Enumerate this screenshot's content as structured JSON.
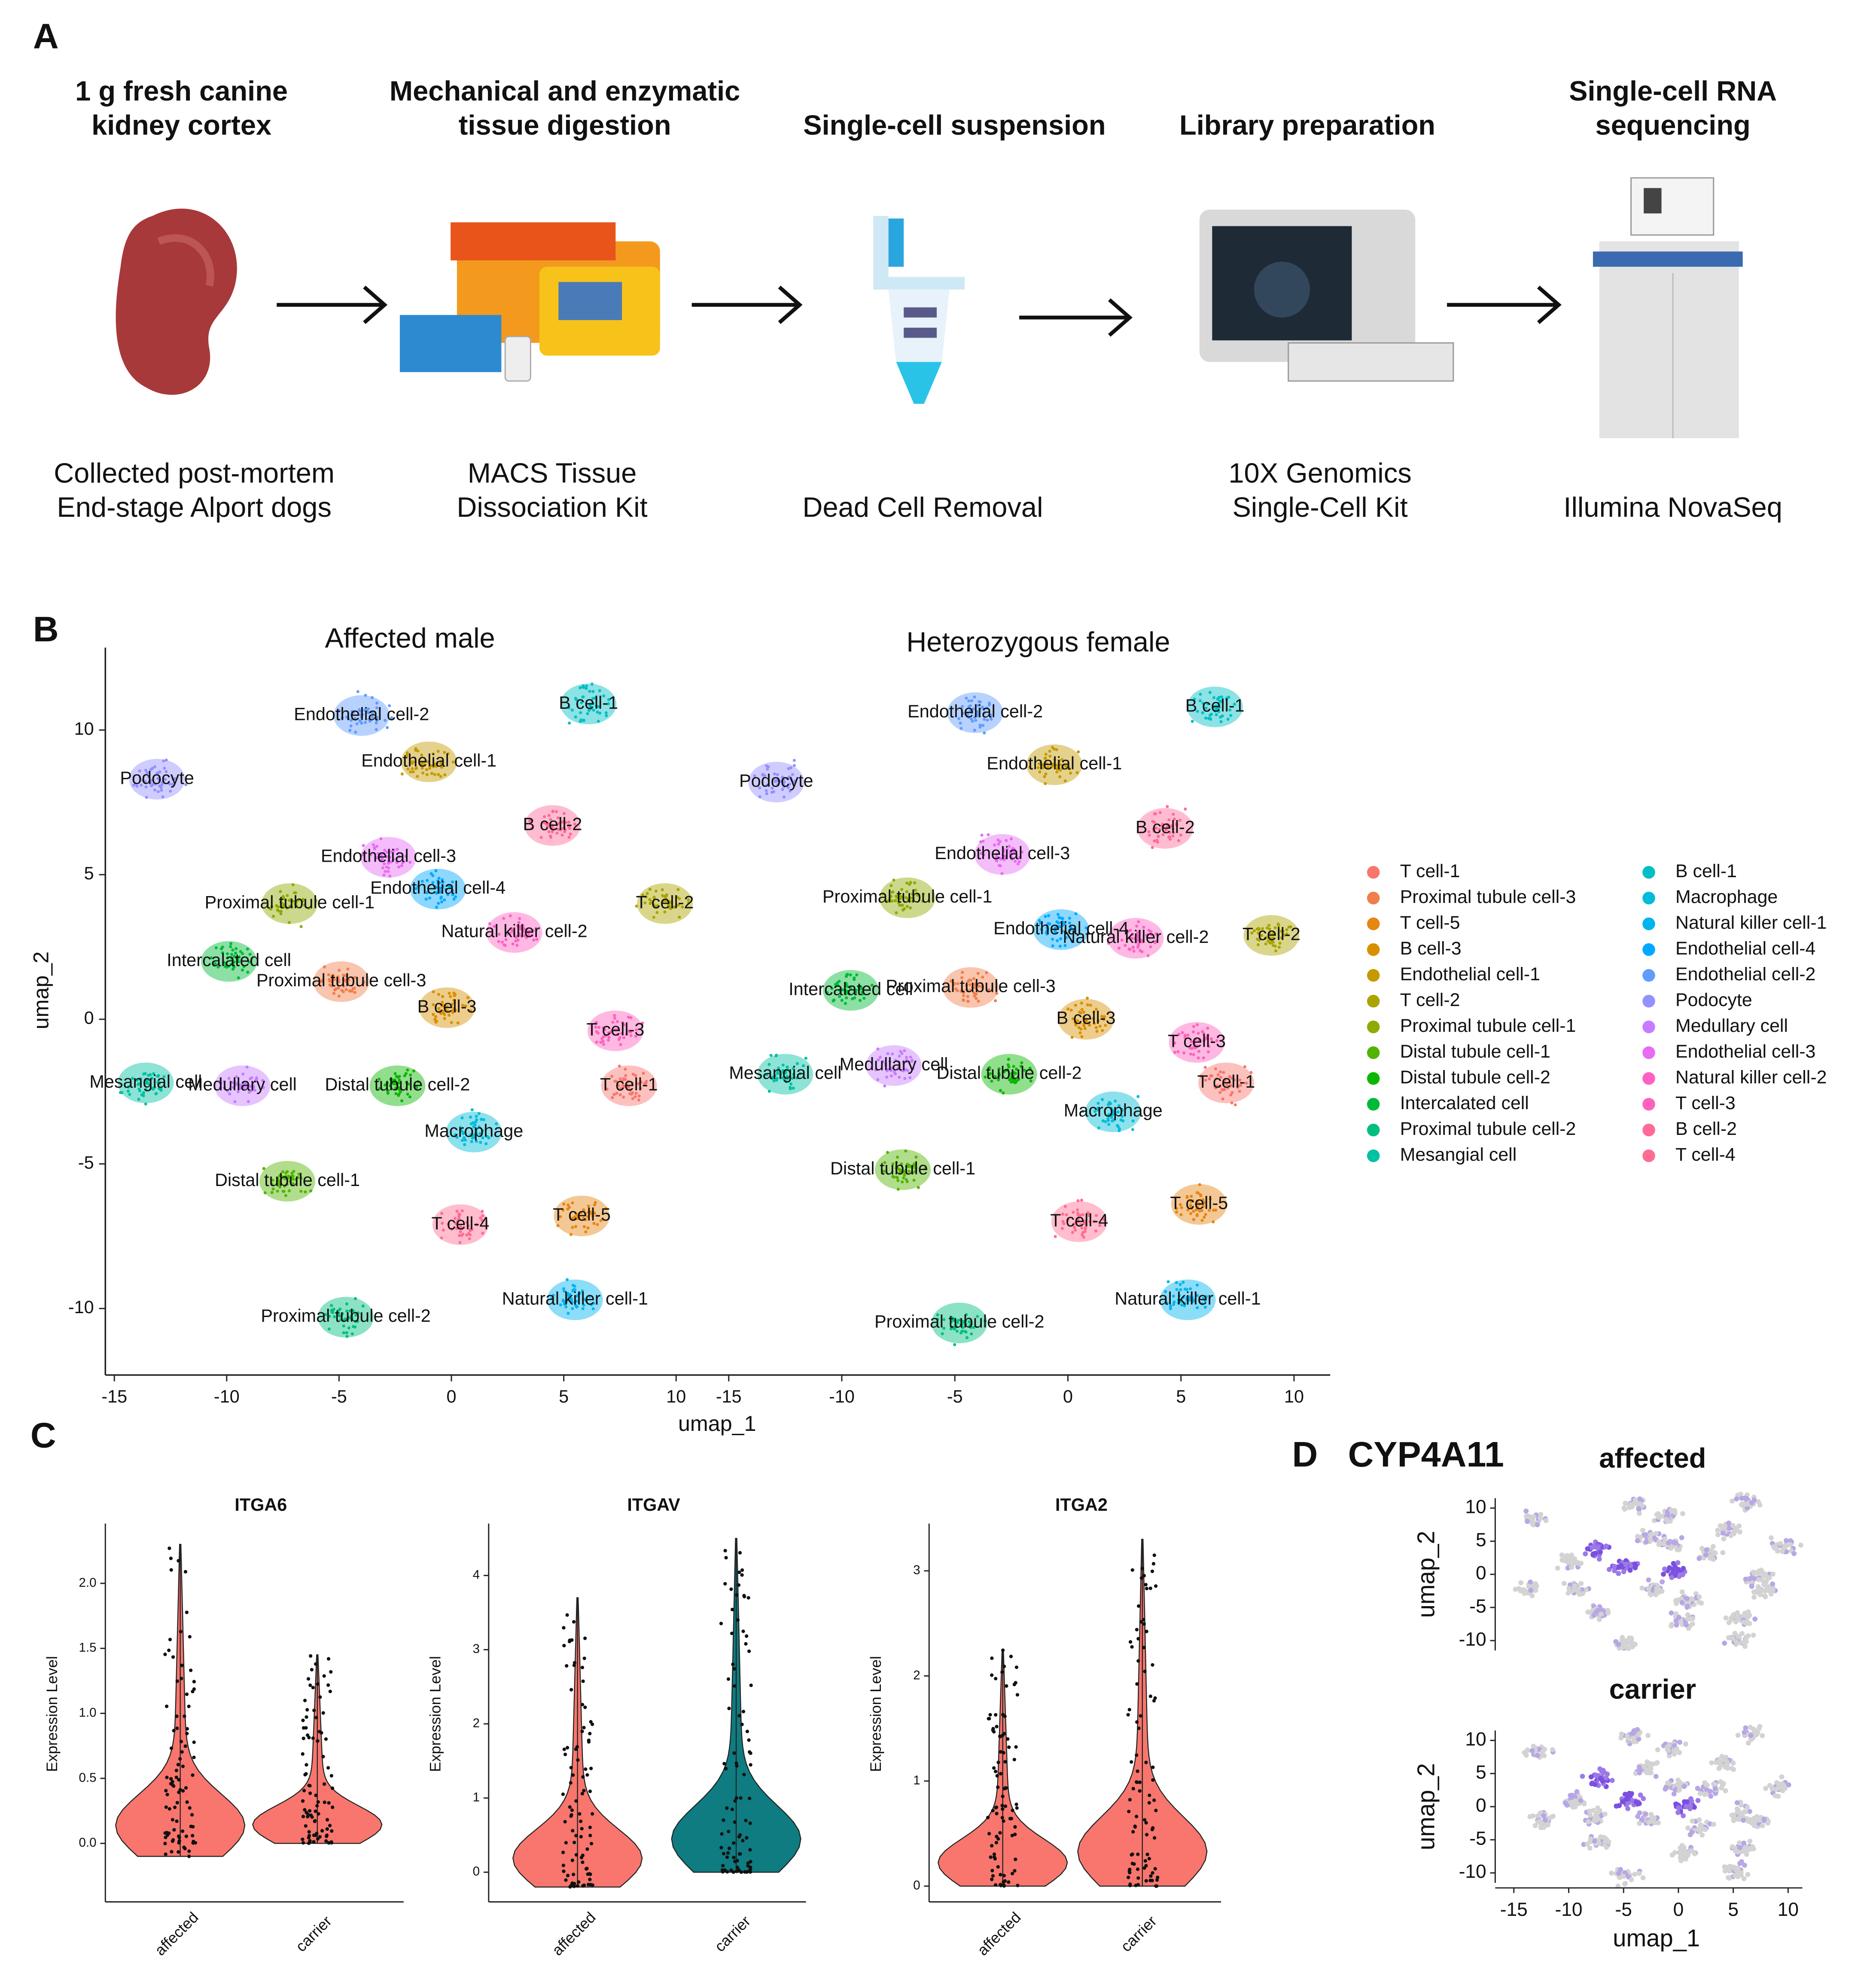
{
  "panel_a": {
    "letter": "A",
    "steps": [
      {
        "title": [
          "1 g fresh canine",
          "kidney cortex"
        ],
        "caption": [
          "Collected post-mortem",
          "End-stage Alport dogs"
        ]
      },
      {
        "title": [
          "Mechanical and enzymatic",
          "tissue digestion"
        ],
        "caption": [
          "MACS Tissue",
          "Dissociation Kit"
        ]
      },
      {
        "title": [
          "Single-cell suspension"
        ],
        "caption": [
          "Dead Cell Removal"
        ]
      },
      {
        "title": [
          "Library preparation"
        ],
        "caption": [
          "10X Genomics",
          "Single-Cell Kit"
        ]
      },
      {
        "title": [
          "Single-cell RNA",
          "sequencing"
        ],
        "caption": [
          "Illumina NovaSeq"
        ]
      }
    ]
  },
  "chart_data": [
    {
      "type": "umap",
      "panel": "B",
      "xlabel": "umap_1",
      "ylabel": "umap_2",
      "xlim": [
        -15.4,
        11.6
      ],
      "ylim": [
        -12.3,
        12.85
      ],
      "xticks": [
        -15,
        -10,
        -5,
        0,
        5,
        10
      ],
      "yticks": [
        -10,
        -5,
        0,
        5,
        10
      ],
      "facets": [
        {
          "title": "Affected male",
          "labels": [
            {
              "text": "Endothelial cell-2",
              "x": -4.0,
              "y": 10.5
            },
            {
              "text": "Endothelial cell-1",
              "x": -1.0,
              "y": 8.9
            },
            {
              "text": "B cell-1",
              "x": 6.1,
              "y": 10.9
            },
            {
              "text": "Podocyte",
              "x": -13.1,
              "y": 8.3
            },
            {
              "text": "B cell-2",
              "x": 4.5,
              "y": 6.7
            },
            {
              "text": "Endothelial cell-3",
              "x": -2.8,
              "y": 5.6
            },
            {
              "text": "Endothelial cell-4",
              "x": -0.6,
              "y": 4.5
            },
            {
              "text": "Proximal tubule cell-1",
              "x": -7.2,
              "y": 4.0
            },
            {
              "text": "T cell-2",
              "x": 9.5,
              "y": 4.0
            },
            {
              "text": "Natural killer cell-2",
              "x": 2.8,
              "y": 3.0
            },
            {
              "text": "Intercalated cell",
              "x": -9.9,
              "y": 2.0
            },
            {
              "text": "Proximal tubule cell-3",
              "x": -4.9,
              "y": 1.3
            },
            {
              "text": "B cell-3",
              "x": -0.2,
              "y": 0.4
            },
            {
              "text": "T cell-3",
              "x": 7.3,
              "y": -0.4
            },
            {
              "text": "Mesangial cell",
              "x": -13.6,
              "y": -2.2
            },
            {
              "text": "Medullary cell",
              "x": -9.3,
              "y": -2.3
            },
            {
              "text": "Distal tubule cell-2",
              "x": -2.4,
              "y": -2.3
            },
            {
              "text": "T cell-1",
              "x": 7.9,
              "y": -2.3
            },
            {
              "text": "Macrophage",
              "x": 1.0,
              "y": -3.9
            },
            {
              "text": "Distal tubule cell-1",
              "x": -7.3,
              "y": -5.6
            },
            {
              "text": "T cell-4",
              "x": 0.4,
              "y": -7.1
            },
            {
              "text": "T cell-5",
              "x": 5.8,
              "y": -6.8
            },
            {
              "text": "Natural killer cell-1",
              "x": 5.5,
              "y": -9.7
            },
            {
              "text": "Proximal tubule cell-2",
              "x": -4.7,
              "y": -10.3
            }
          ]
        },
        {
          "title": "Heterozygous female",
          "labels": [
            {
              "text": "Endothelial cell-2",
              "x": -4.1,
              "y": 10.6
            },
            {
              "text": "B cell-1",
              "x": 6.5,
              "y": 10.8
            },
            {
              "text": "Podocyte",
              "x": -12.9,
              "y": 8.2
            },
            {
              "text": "Endothelial cell-1",
              "x": -0.6,
              "y": 8.8
            },
            {
              "text": "B cell-2",
              "x": 4.3,
              "y": 6.6
            },
            {
              "text": "Endothelial cell-3",
              "x": -2.9,
              "y": 5.7
            },
            {
              "text": "Proximal tubule cell-1",
              "x": -7.1,
              "y": 4.2
            },
            {
              "text": "Endothelial cell-4",
              "x": -0.3,
              "y": 3.1
            },
            {
              "text": "Natural killer cell-2",
              "x": 3.0,
              "y": 2.8
            },
            {
              "text": "T cell-2",
              "x": 9.0,
              "y": 2.9
            },
            {
              "text": "Intercalated cell",
              "x": -9.6,
              "y": 1.0
            },
            {
              "text": "Proximal tubule cell-3",
              "x": -4.3,
              "y": 1.1
            },
            {
              "text": "B cell-3",
              "x": 0.8,
              "y": 0.0
            },
            {
              "text": "T cell-3",
              "x": 5.7,
              "y": -0.8
            },
            {
              "text": "Mesangial cell",
              "x": -12.5,
              "y": -1.9
            },
            {
              "text": "Medullary cell",
              "x": -7.7,
              "y": -1.6
            },
            {
              "text": "Distal tubule cell-2",
              "x": -2.6,
              "y": -1.9
            },
            {
              "text": "T cell-1",
              "x": 7.0,
              "y": -2.2
            },
            {
              "text": "Macrophage",
              "x": 2.0,
              "y": -3.2
            },
            {
              "text": "Distal tubule cell-1",
              "x": -7.3,
              "y": -5.2
            },
            {
              "text": "T cell-4",
              "x": 0.5,
              "y": -7.0
            },
            {
              "text": "T cell-5",
              "x": 5.8,
              "y": -6.4
            },
            {
              "text": "Natural killer cell-1",
              "x": 5.3,
              "y": -9.7
            },
            {
              "text": "Proximal tubule cell-2",
              "x": -4.8,
              "y": -10.5
            }
          ]
        }
      ],
      "series": [
        {
          "name": "T cell-1",
          "color": "#F8766D"
        },
        {
          "name": "Proximal tubule cell-3",
          "color": "#F17E4C"
        },
        {
          "name": "T cell-5",
          "color": "#E68613"
        },
        {
          "name": "B cell-3",
          "color": "#D89000"
        },
        {
          "name": "Endothelial cell-1",
          "color": "#C49A00"
        },
        {
          "name": "T cell-2",
          "color": "#ABA300"
        },
        {
          "name": "Proximal tubule cell-1",
          "color": "#8FAA00"
        },
        {
          "name": "Distal tubule cell-1",
          "color": "#53B400"
        },
        {
          "name": "Distal tubule cell-2",
          "color": "#0CB702"
        },
        {
          "name": "Intercalated cell",
          "color": "#00BA38"
        },
        {
          "name": "Proximal tubule cell-2",
          "color": "#00BF7D"
        },
        {
          "name": "Mesangial cell",
          "color": "#00C1A3"
        },
        {
          "name": "B cell-1",
          "color": "#00BFC4"
        },
        {
          "name": "Macrophage",
          "color": "#00BCD8"
        },
        {
          "name": "Natural killer cell-1",
          "color": "#00B4EF"
        },
        {
          "name": "Endothelial cell-4",
          "color": "#00A9FF"
        },
        {
          "name": "Endothelial cell-2",
          "color": "#619CFF"
        },
        {
          "name": "Podocyte",
          "color": "#9590FF"
        },
        {
          "name": "Medullary cell",
          "color": "#C77CFF"
        },
        {
          "name": "Endothelial cell-3",
          "color": "#E76BF3"
        },
        {
          "name": "Natural killer cell-2",
          "color": "#FF61C3"
        },
        {
          "name": "T cell-3",
          "color": "#FF62BC"
        },
        {
          "name": "B cell-2",
          "color": "#FF6A98"
        },
        {
          "name": "T cell-4",
          "color": "#FF6C91"
        }
      ]
    },
    {
      "type": "violin",
      "panel": "C",
      "title": "ITGA6",
      "ylabel": "Expression Level",
      "categories": [
        "affected",
        "carrier"
      ],
      "colors": [
        "#F8766D",
        "#F8766D"
      ],
      "ranges": [
        [
          -0.1,
          2.3
        ],
        [
          0,
          1.45
        ]
      ],
      "ylim": [
        -0.45,
        2.46
      ],
      "yticks": [
        {
          "value": 0,
          "label": "0.0"
        },
        0.5,
        {
          "value": 1,
          "label": "1.0"
        },
        1.5,
        {
          "value": 2,
          "label": "2.0"
        }
      ]
    },
    {
      "type": "violin",
      "title": "ITGAV",
      "ylabel": "Expression Level",
      "categories": [
        "affected",
        "carrier"
      ],
      "colors": [
        "#F8766D",
        "#0E7C80"
      ],
      "ranges": [
        [
          -0.2,
          3.7
        ],
        [
          0,
          4.5
        ]
      ],
      "ylim": [
        -0.4,
        4.7
      ],
      "yticks": [
        0,
        1,
        2,
        3,
        4
      ]
    },
    {
      "type": "violin",
      "title": "ITGA2",
      "ylabel": "Expression Level",
      "categories": [
        "affected",
        "carrier"
      ],
      "colors": [
        "#F8766D",
        "#F8766D"
      ],
      "ranges": [
        [
          0,
          2.25
        ],
        [
          0,
          3.3
        ]
      ],
      "ylim": [
        -0.15,
        3.45
      ],
      "yticks": [
        0,
        1,
        2,
        3
      ]
    },
    {
      "type": "feature",
      "panel": "D",
      "title": "CYP4A11",
      "xlabel": "umap_1",
      "ylabel": "umap_2",
      "facets": [
        {
          "title": "affected"
        },
        {
          "title": "carrier"
        }
      ],
      "xlim": [
        -16.7,
        11.3
      ],
      "ylim": [
        -11.5,
        11.5
      ],
      "xticks": [
        -15,
        -10,
        -5,
        0,
        5,
        10
      ],
      "yticks": [
        -10,
        -5,
        0,
        5,
        10
      ]
    }
  ]
}
